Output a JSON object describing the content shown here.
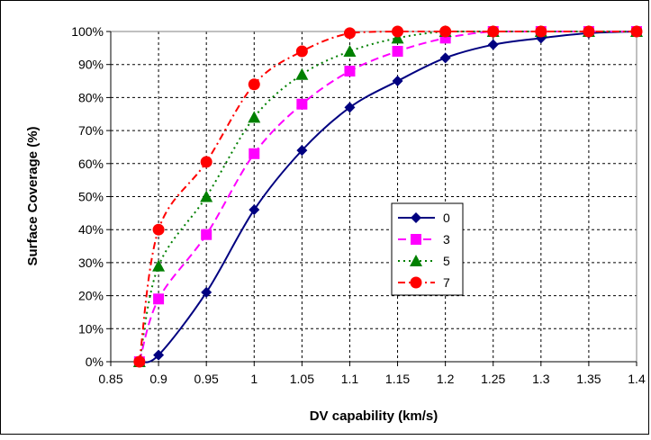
{
  "chart_data": {
    "type": "line",
    "xlabel": "DV capability (km/s)",
    "ylabel": "Surface Coverage (%)",
    "xlim": [
      0.85,
      1.4
    ],
    "ylim": [
      0,
      100
    ],
    "x_ticks": [
      "0.85",
      "0.9",
      "0.95",
      "1",
      "1.05",
      "1.1",
      "1.15",
      "1.2",
      "1.25",
      "1.3",
      "1.35",
      "1.4"
    ],
    "y_ticks": [
      "0%",
      "10%",
      "20%",
      "30%",
      "40%",
      "50%",
      "60%",
      "70%",
      "80%",
      "90%",
      "100%"
    ],
    "grid": true,
    "legend_position": "center-right",
    "series": [
      {
        "name": "0",
        "color": "#000080",
        "marker": "diamond",
        "dash": "solid",
        "points": [
          [
            0.88,
            0
          ],
          [
            0.9,
            2
          ],
          [
            0.95,
            21
          ],
          [
            1.0,
            46
          ],
          [
            1.05,
            64
          ],
          [
            1.1,
            77
          ],
          [
            1.15,
            85
          ],
          [
            1.2,
            92
          ],
          [
            1.25,
            96
          ],
          [
            1.3,
            98
          ],
          [
            1.35,
            99.5
          ],
          [
            1.4,
            100
          ]
        ]
      },
      {
        "name": "3",
        "color": "#ff00ff",
        "marker": "square",
        "dash": "dash",
        "points": [
          [
            0.88,
            0
          ],
          [
            0.9,
            19
          ],
          [
            0.95,
            38.5
          ],
          [
            1.0,
            63
          ],
          [
            1.05,
            78
          ],
          [
            1.1,
            88
          ],
          [
            1.15,
            94
          ],
          [
            1.2,
            98
          ],
          [
            1.25,
            100
          ],
          [
            1.3,
            100
          ],
          [
            1.35,
            100
          ],
          [
            1.4,
            100
          ]
        ]
      },
      {
        "name": "5",
        "color": "#008000",
        "marker": "triangle",
        "dash": "dot",
        "points": [
          [
            0.88,
            0
          ],
          [
            0.9,
            29
          ],
          [
            0.95,
            50
          ],
          [
            1.0,
            74
          ],
          [
            1.05,
            87
          ],
          [
            1.1,
            94
          ],
          [
            1.15,
            98
          ],
          [
            1.2,
            100
          ],
          [
            1.25,
            100
          ],
          [
            1.3,
            100
          ],
          [
            1.35,
            100
          ],
          [
            1.4,
            100
          ]
        ]
      },
      {
        "name": "7",
        "color": "#ff0000",
        "marker": "circle",
        "dash": "dashdot",
        "points": [
          [
            0.88,
            0
          ],
          [
            0.9,
            40
          ],
          [
            0.95,
            60.5
          ],
          [
            1.0,
            84
          ],
          [
            1.05,
            94
          ],
          [
            1.1,
            99.5
          ],
          [
            1.15,
            100
          ],
          [
            1.2,
            100
          ],
          [
            1.25,
            100
          ],
          [
            1.3,
            100
          ],
          [
            1.35,
            100
          ],
          [
            1.4,
            100
          ]
        ]
      }
    ]
  }
}
